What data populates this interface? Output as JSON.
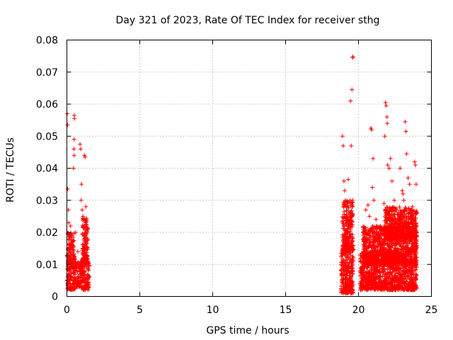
{
  "chart_data": {
    "type": "scatter",
    "title": "Day 321 of 2023, Rate Of TEC Index for receiver sthg",
    "xlabel": "GPS time / hours",
    "ylabel": "ROTI / TECUs",
    "xlim": [
      0,
      25
    ],
    "ylim": [
      0,
      0.08
    ],
    "xticks": [
      0,
      5,
      10,
      15,
      20,
      25
    ],
    "xtick_labels": [
      "0",
      "5",
      "10",
      "15",
      "20",
      "25"
    ],
    "yticks": [
      0,
      0.01,
      0.02,
      0.03,
      0.04,
      0.05,
      0.06,
      0.07,
      0.08
    ],
    "ytick_labels": [
      "0",
      "0.01",
      "0.02",
      "0.03",
      "0.04",
      "0.05",
      "0.06",
      "0.07",
      "0.08"
    ],
    "grid": true,
    "marker": "+",
    "color": "#ff0000",
    "series": [
      {
        "name": "ROTI",
        "points": [
          [
            0.02,
            0.057
          ],
          [
            0.04,
            0.0535
          ],
          [
            0.05,
            0.0335
          ],
          [
            0.1,
            0.027
          ],
          [
            0.12,
            0.023
          ],
          [
            0.2,
            0.015
          ],
          [
            0.25,
            0.022
          ],
          [
            0.3,
            0.019
          ],
          [
            0.4,
            0.017
          ],
          [
            0.5,
            0.0565
          ],
          [
            0.52,
            0.0555
          ],
          [
            0.5,
            0.049
          ],
          [
            0.48,
            0.046
          ],
          [
            0.5,
            0.044
          ],
          [
            0.45,
            0.04
          ],
          [
            0.6,
            0.02
          ],
          [
            0.75,
            0.014
          ],
          [
            0.9,
            0.0475
          ],
          [
            0.95,
            0.046
          ],
          [
            1.0,
            0.035
          ],
          [
            0.98,
            0.03
          ],
          [
            1.05,
            0.027
          ],
          [
            1.1,
            0.025
          ],
          [
            1.2,
            0.044
          ],
          [
            1.25,
            0.0435
          ],
          [
            1.3,
            0.028
          ],
          [
            1.35,
            0.024
          ],
          [
            1.4,
            0.02
          ],
          [
            18.9,
            0.05
          ],
          [
            18.95,
            0.047
          ],
          [
            19.0,
            0.036
          ],
          [
            19.05,
            0.033
          ],
          [
            19.1,
            0.03
          ],
          [
            19.2,
            0.028
          ],
          [
            19.3,
            0.0365
          ],
          [
            19.45,
            0.061
          ],
          [
            19.55,
            0.0645
          ],
          [
            19.6,
            0.0745
          ],
          [
            19.62,
            0.0748
          ],
          [
            19.5,
            0.047
          ],
          [
            19.6,
            0.03
          ],
          [
            20.3,
            0.02
          ],
          [
            20.5,
            0.027
          ],
          [
            20.65,
            0.0285
          ],
          [
            20.75,
            0.025
          ],
          [
            20.85,
            0.0525
          ],
          [
            20.9,
            0.052
          ],
          [
            21.0,
            0.043
          ],
          [
            20.95,
            0.034
          ],
          [
            21.05,
            0.03
          ],
          [
            21.2,
            0.024
          ],
          [
            21.5,
            0.022
          ],
          [
            21.75,
            0.029
          ],
          [
            21.85,
            0.0605
          ],
          [
            21.9,
            0.0595
          ],
          [
            21.95,
            0.056
          ],
          [
            21.97,
            0.054
          ],
          [
            21.8,
            0.05
          ],
          [
            22.0,
            0.041
          ],
          [
            22.1,
            0.04
          ],
          [
            22.2,
            0.043
          ],
          [
            22.3,
            0.036
          ],
          [
            22.45,
            0.03
          ],
          [
            22.6,
            0.027
          ],
          [
            22.85,
            0.04
          ],
          [
            23.0,
            0.033
          ],
          [
            23.05,
            0.032
          ],
          [
            23.1,
            0.03
          ],
          [
            23.2,
            0.0545
          ],
          [
            23.25,
            0.0515
          ],
          [
            23.3,
            0.0445
          ],
          [
            23.4,
            0.037
          ],
          [
            23.5,
            0.035
          ],
          [
            23.6,
            0.026
          ],
          [
            23.7,
            0.028
          ],
          [
            23.85,
            0.042
          ],
          [
            23.9,
            0.041
          ],
          [
            23.95,
            0.035
          ],
          [
            24.0,
            0.026
          ]
        ],
        "bands": [
          {
            "x": [
              0.0,
              0.55
            ],
            "y": [
              0.002,
              0.013
            ]
          },
          {
            "x": [
              0.55,
              1.0
            ],
            "y": [
              0.003,
              0.011
            ]
          },
          {
            "x": [
              1.0,
              1.55
            ],
            "y": [
              0.002,
              0.012
            ]
          },
          {
            "x": [
              0.05,
              0.5
            ],
            "y": [
              0.01,
              0.02
            ]
          },
          {
            "x": [
              1.05,
              1.45
            ],
            "y": [
              0.01,
              0.025
            ]
          },
          {
            "x": [
              18.8,
              19.65
            ],
            "y": [
              0.001,
              0.016
            ]
          },
          {
            "x": [
              18.9,
              19.6
            ],
            "y": [
              0.014,
              0.03
            ]
          },
          {
            "x": [
              20.1,
              24.0
            ],
            "y": [
              0.002,
              0.014
            ]
          },
          {
            "x": [
              20.3,
              24.0
            ],
            "y": [
              0.01,
              0.022
            ]
          },
          {
            "x": [
              21.8,
              24.0
            ],
            "y": [
              0.018,
              0.028
            ]
          }
        ]
      }
    ]
  }
}
